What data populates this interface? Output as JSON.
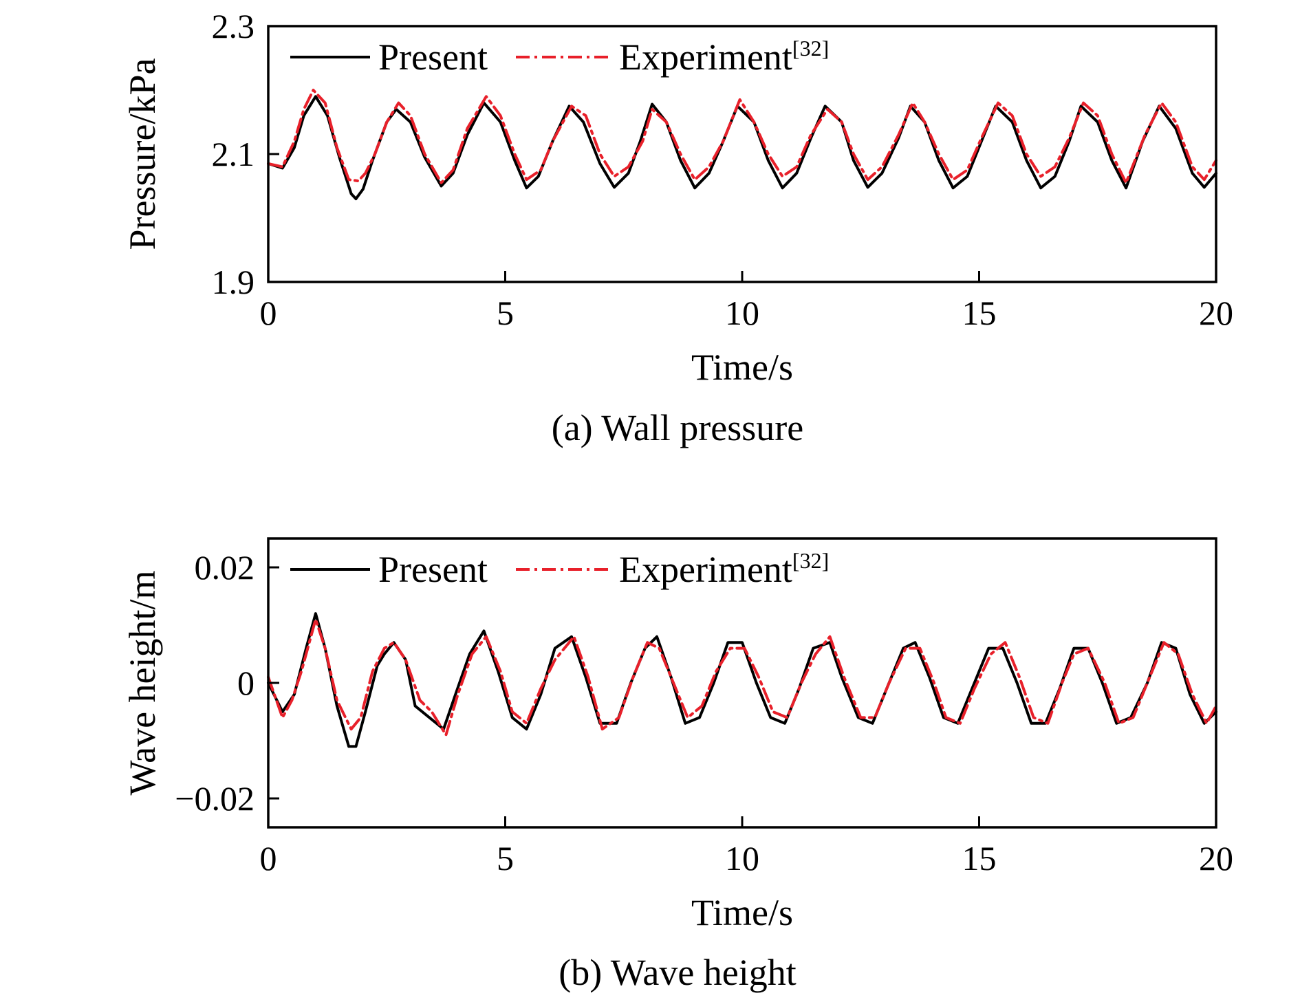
{
  "chart_data": [
    {
      "type": "line",
      "caption": "(a) Wall pressure",
      "xlabel": "Time/s",
      "ylabel": "Pressure/kPa",
      "xlim": [
        0,
        20
      ],
      "ylim": [
        1.9,
        2.3
      ],
      "xticks": [
        "0",
        "5",
        "10",
        "15",
        "20"
      ],
      "yticks": [
        "1.9",
        "2.1",
        "2.3"
      ],
      "legend_position": "top-left",
      "series": [
        {
          "name": "Present",
          "ref": "",
          "color": "#000000",
          "style": "solid",
          "x": [
            0.0,
            0.3,
            0.55,
            0.75,
            1.0,
            1.25,
            1.5,
            1.75,
            1.85,
            2.0,
            2.2,
            2.5,
            2.7,
            3.0,
            3.3,
            3.65,
            3.9,
            4.2,
            4.55,
            4.9,
            5.2,
            5.45,
            5.7,
            6.0,
            6.35,
            6.65,
            7.0,
            7.3,
            7.6,
            7.85,
            8.1,
            8.4,
            8.7,
            9.0,
            9.3,
            9.6,
            9.9,
            10.25,
            10.55,
            10.85,
            11.15,
            11.45,
            11.75,
            12.1,
            12.35,
            12.65,
            12.95,
            13.3,
            13.55,
            13.85,
            14.15,
            14.45,
            14.75,
            15.05,
            15.35,
            15.7,
            16.0,
            16.3,
            16.6,
            16.9,
            17.15,
            17.5,
            17.8,
            18.1,
            18.45,
            18.8,
            19.15,
            19.5,
            19.75,
            20.0
          ],
          "y": [
            2.085,
            2.078,
            2.11,
            2.16,
            2.19,
            2.16,
            2.095,
            2.038,
            2.03,
            2.045,
            2.09,
            2.15,
            2.17,
            2.15,
            2.095,
            2.05,
            2.07,
            2.13,
            2.18,
            2.15,
            2.09,
            2.047,
            2.065,
            2.12,
            2.175,
            2.15,
            2.085,
            2.048,
            2.07,
            2.12,
            2.178,
            2.15,
            2.09,
            2.047,
            2.07,
            2.12,
            2.175,
            2.15,
            2.09,
            2.047,
            2.07,
            2.125,
            2.175,
            2.15,
            2.09,
            2.048,
            2.07,
            2.125,
            2.175,
            2.15,
            2.09,
            2.047,
            2.065,
            2.12,
            2.175,
            2.15,
            2.09,
            2.047,
            2.065,
            2.12,
            2.175,
            2.15,
            2.09,
            2.047,
            2.12,
            2.175,
            2.14,
            2.07,
            2.048,
            2.07
          ]
        },
        {
          "name": "Experiment",
          "ref": "[32]",
          "color": "#e8202a",
          "style": "dash-dot",
          "x": [
            0.0,
            0.3,
            0.55,
            0.75,
            0.95,
            1.2,
            1.45,
            1.7,
            1.9,
            2.05,
            2.25,
            2.5,
            2.75,
            3.0,
            3.3,
            3.65,
            3.9,
            4.2,
            4.6,
            4.9,
            5.2,
            5.45,
            5.75,
            6.0,
            6.4,
            6.7,
            7.0,
            7.3,
            7.6,
            7.9,
            8.1,
            8.4,
            8.7,
            9.0,
            9.3,
            9.6,
            9.95,
            10.25,
            10.55,
            10.85,
            11.15,
            11.45,
            11.8,
            12.1,
            12.35,
            12.65,
            12.95,
            13.3,
            13.6,
            13.85,
            14.15,
            14.45,
            14.75,
            15.05,
            15.4,
            15.7,
            16.0,
            16.3,
            16.6,
            16.9,
            17.2,
            17.5,
            17.8,
            18.1,
            18.5,
            18.85,
            19.15,
            19.5,
            19.75,
            20.0
          ],
          "y": [
            2.085,
            2.08,
            2.12,
            2.17,
            2.2,
            2.18,
            2.11,
            2.06,
            2.058,
            2.07,
            2.1,
            2.15,
            2.18,
            2.16,
            2.1,
            2.055,
            2.075,
            2.14,
            2.19,
            2.16,
            2.1,
            2.06,
            2.075,
            2.12,
            2.175,
            2.16,
            2.1,
            2.065,
            2.08,
            2.12,
            2.17,
            2.15,
            2.1,
            2.06,
            2.08,
            2.12,
            2.185,
            2.15,
            2.1,
            2.065,
            2.08,
            2.13,
            2.17,
            2.15,
            2.1,
            2.06,
            2.08,
            2.13,
            2.18,
            2.15,
            2.1,
            2.06,
            2.075,
            2.125,
            2.18,
            2.16,
            2.1,
            2.065,
            2.08,
            2.125,
            2.18,
            2.16,
            2.1,
            2.055,
            2.13,
            2.18,
            2.15,
            2.08,
            2.06,
            2.09
          ]
        }
      ]
    },
    {
      "type": "line",
      "caption": "(b) Wave height",
      "xlabel": "Time/s",
      "ylabel": "Wave height/m",
      "xlim": [
        0,
        20
      ],
      "ylim": [
        -0.025,
        0.025
      ],
      "yticks_values": [
        -0.02,
        0,
        0.02
      ],
      "xticks": [
        "0",
        "5",
        "10",
        "15",
        "20"
      ],
      "yticks": [
        "−0.02",
        "0",
        "0.02"
      ],
      "legend_position": "top-left",
      "series": [
        {
          "name": "Present",
          "ref": "",
          "color": "#000000",
          "style": "solid",
          "x": [
            0.0,
            0.3,
            0.55,
            0.8,
            1.0,
            1.2,
            1.45,
            1.7,
            1.85,
            2.05,
            2.3,
            2.45,
            2.65,
            2.9,
            3.1,
            3.4,
            3.7,
            3.95,
            4.25,
            4.55,
            4.85,
            5.15,
            5.45,
            5.75,
            6.05,
            6.4,
            6.7,
            7.0,
            7.35,
            7.65,
            7.95,
            8.2,
            8.5,
            8.8,
            9.1,
            9.4,
            9.7,
            10.0,
            10.3,
            10.6,
            10.9,
            11.2,
            11.5,
            11.85,
            12.1,
            12.45,
            12.75,
            13.05,
            13.4,
            13.65,
            13.95,
            14.25,
            14.55,
            14.85,
            15.2,
            15.5,
            15.8,
            16.1,
            16.4,
            16.7,
            17.0,
            17.3,
            17.6,
            17.9,
            18.2,
            18.55,
            18.85,
            19.15,
            19.45,
            19.75,
            20.0
          ],
          "y": [
            0.0,
            -0.005,
            -0.002,
            0.006,
            0.012,
            0.006,
            -0.004,
            -0.011,
            -0.011,
            -0.005,
            0.003,
            0.005,
            0.007,
            0.004,
            -0.004,
            -0.006,
            -0.008,
            -0.002,
            0.005,
            0.009,
            0.002,
            -0.006,
            -0.008,
            -0.002,
            0.006,
            0.008,
            0.001,
            -0.007,
            -0.007,
            0.0,
            0.006,
            0.008,
            0.001,
            -0.007,
            -0.006,
            0.0,
            0.007,
            0.007,
            0.0,
            -0.006,
            -0.007,
            -0.001,
            0.006,
            0.007,
            0.001,
            -0.006,
            -0.007,
            -0.001,
            0.006,
            0.007,
            0.001,
            -0.006,
            -0.007,
            -0.001,
            0.006,
            0.006,
            0.0,
            -0.007,
            -0.007,
            -0.001,
            0.006,
            0.006,
            0.0,
            -0.007,
            -0.006,
            0.0,
            0.007,
            0.006,
            -0.002,
            -0.007,
            -0.005
          ]
        },
        {
          "name": "Experiment",
          "ref": "[32]",
          "color": "#e8202a",
          "style": "dash-dot",
          "x": [
            0.0,
            0.3,
            0.5,
            0.7,
            1.0,
            1.2,
            1.45,
            1.75,
            1.95,
            2.2,
            2.45,
            2.65,
            2.9,
            3.2,
            3.45,
            3.75,
            4.0,
            4.3,
            4.6,
            4.9,
            5.15,
            5.45,
            5.75,
            6.05,
            6.45,
            6.75,
            7.05,
            7.4,
            7.7,
            8.0,
            8.25,
            8.55,
            8.85,
            9.15,
            9.45,
            9.75,
            10.05,
            10.35,
            10.65,
            10.95,
            11.25,
            11.55,
            11.85,
            12.15,
            12.5,
            12.8,
            13.1,
            13.45,
            13.75,
            14.05,
            14.3,
            14.6,
            14.9,
            15.25,
            15.55,
            15.85,
            16.15,
            16.45,
            16.75,
            17.0,
            17.3,
            17.65,
            17.95,
            18.25,
            18.6,
            18.9,
            19.2,
            19.5,
            19.8,
            20.0
          ],
          "y": [
            0.001,
            -0.006,
            -0.003,
            0.002,
            0.011,
            0.006,
            -0.003,
            -0.008,
            -0.006,
            0.002,
            0.006,
            0.007,
            0.004,
            -0.003,
            -0.005,
            -0.009,
            -0.002,
            0.005,
            0.008,
            0.002,
            -0.005,
            -0.007,
            -0.001,
            0.004,
            0.008,
            0.001,
            -0.008,
            -0.006,
            0.001,
            0.007,
            0.006,
            0.0,
            -0.006,
            -0.004,
            0.002,
            0.006,
            0.006,
            0.001,
            -0.005,
            -0.006,
            0.0,
            0.005,
            0.008,
            0.001,
            -0.006,
            -0.006,
            0.0,
            0.006,
            0.006,
            0.0,
            -0.006,
            -0.007,
            -0.001,
            0.005,
            0.007,
            0.001,
            -0.006,
            -0.007,
            0.0,
            0.005,
            0.006,
            0.0,
            -0.007,
            -0.006,
            0.001,
            0.007,
            0.005,
            -0.002,
            -0.007,
            -0.004
          ]
        }
      ]
    }
  ]
}
